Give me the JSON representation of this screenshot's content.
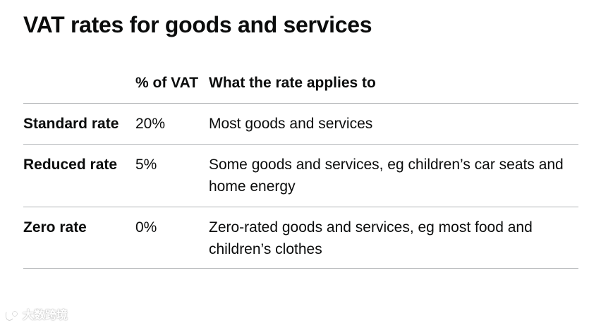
{
  "title": "VAT rates for goods and services",
  "table": {
    "headers": {
      "band": "",
      "percent": "% of VAT",
      "applies_to": "What the rate applies to"
    },
    "rows": [
      {
        "band": "Standard rate",
        "percent": "20%",
        "applies_to": "Most goods and services"
      },
      {
        "band": "Reduced rate",
        "percent": "5%",
        "applies_to": "Some goods and services, eg children’s car seats and home energy"
      },
      {
        "band": "Zero rate",
        "percent": "0%",
        "applies_to": "Zero-rated goods and services, eg most food and children’s clothes"
      }
    ]
  },
  "watermark": {
    "text": "大数跨境"
  }
}
